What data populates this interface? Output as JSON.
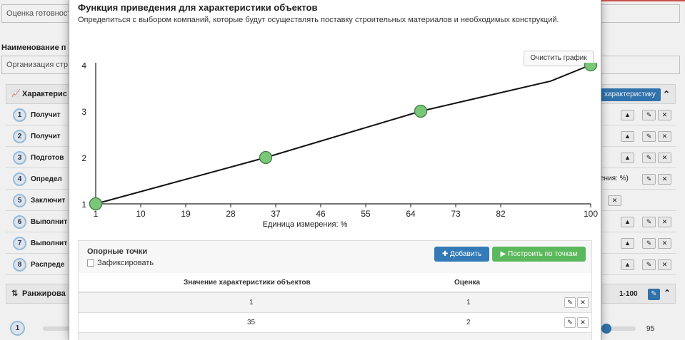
{
  "background": {
    "top_input": "Оценка готовност",
    "name_label": "Наименование п",
    "name_input": "Организация стр",
    "characteristics_panel_title": "Характерис",
    "add_characteristic_label": "характеристику",
    "rows": [
      {
        "num": "1",
        "text": "Получит"
      },
      {
        "num": "2",
        "text": "Получит"
      },
      {
        "num": "3",
        "text": "Подготов"
      },
      {
        "num": "4",
        "text": "Определ"
      },
      {
        "num": "5",
        "text": "Заключит"
      },
      {
        "num": "6",
        "text": "Выполнит"
      },
      {
        "num": "7",
        "text": "Выполнит"
      },
      {
        "num": "8",
        "text": "Распреде"
      }
    ],
    "row4_right_text": "ения: %)",
    "ranking_panel_title": "Ранжирова",
    "ranking_range": "1-100",
    "ranking_row_num": "1",
    "ranking_value": "95",
    "ranking_slider_fraction": 0.95
  },
  "modal": {
    "title": "Функция приведения для характеристики объектов",
    "subtitle": "Определиться с выбором компаний, которые будут осуществлять поставку строительных материалов и необходимых конструкций.",
    "clear_button": "Очистить график",
    "reference_points_title": "Опорные точки",
    "fix_checkbox_label": "Зафиксировать",
    "add_button": "Добавить",
    "build_button": "Построить по точкам",
    "table": {
      "col_value": "Значение характеристики объектов",
      "col_score": "Оценка",
      "rows": [
        {
          "value": "1",
          "score": "1"
        },
        {
          "value": "35",
          "score": "2"
        }
      ]
    }
  },
  "chart_data": {
    "type": "line",
    "title": "",
    "xlabel": "Единица измерения: %",
    "ylabel": "",
    "x_ticks": [
      1,
      10,
      19,
      28,
      37,
      46,
      55,
      64,
      73,
      82,
      100
    ],
    "y_ticks": [
      1,
      2,
      3,
      4
    ],
    "xlim": [
      1,
      100
    ],
    "ylim": [
      1,
      4
    ],
    "series": [
      {
        "values": [
          [
            1,
            1
          ],
          [
            35,
            2
          ],
          [
            66,
            3
          ],
          [
            92,
            3.65
          ],
          [
            100,
            4
          ]
        ],
        "points": [
          [
            1,
            1
          ],
          [
            35,
            2
          ],
          [
            66,
            3
          ],
          [
            100,
            4
          ]
        ]
      }
    ],
    "colors": {
      "line": "#111111",
      "point_fill": "#7ac77a",
      "point_stroke": "#3f7f3f"
    }
  }
}
